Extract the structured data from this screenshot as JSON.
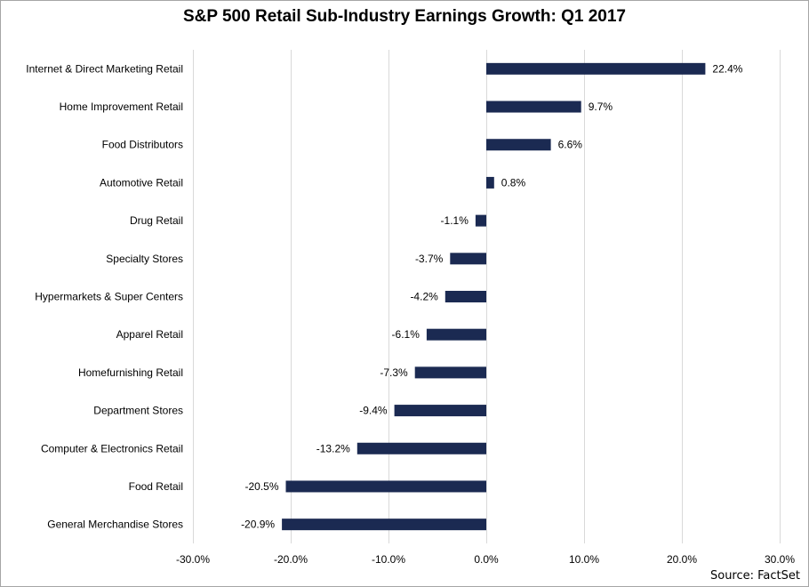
{
  "chart_data": {
    "type": "bar",
    "orientation": "horizontal",
    "title": "S&P 500 Retail Sub-Industry Earnings Growth: Q1 2017",
    "source": "Source: FactSet",
    "xlabel": "",
    "ylabel": "",
    "categories": [
      "Internet & Direct Marketing Retail",
      "Home Improvement Retail",
      "Food Distributors",
      "Automotive Retail",
      "Drug Retail",
      "Specialty Stores",
      "Hypermarkets & Super Centers",
      "Apparel Retail",
      "Homefurnishing Retail",
      "Department Stores",
      "Computer & Electronics Retail",
      "Food Retail",
      "General Merchandise Stores"
    ],
    "values": [
      22.4,
      9.7,
      6.6,
      0.8,
      -1.1,
      -3.7,
      -4.2,
      -6.1,
      -7.3,
      -9.4,
      -13.2,
      -20.5,
      -20.9
    ],
    "value_labels": [
      "22.4%",
      "9.7%",
      "6.6%",
      "0.8%",
      "-1.1%",
      "-3.7%",
      "-4.2%",
      "-6.1%",
      "-7.3%",
      "-9.4%",
      "-13.2%",
      "-20.5%",
      "-20.9%"
    ],
    "xlim": [
      -30,
      30
    ],
    "xticks": [
      -30,
      -20,
      -10,
      0,
      10,
      20,
      30
    ],
    "xtick_labels": [
      "-30.0%",
      "-20.0%",
      "-10.0%",
      "0.0%",
      "10.0%",
      "20.0%",
      "30.0%"
    ],
    "grid": "vertical",
    "legend": "none",
    "bar_color": "#1b2a52",
    "grid_color": "#d9d9d9"
  }
}
